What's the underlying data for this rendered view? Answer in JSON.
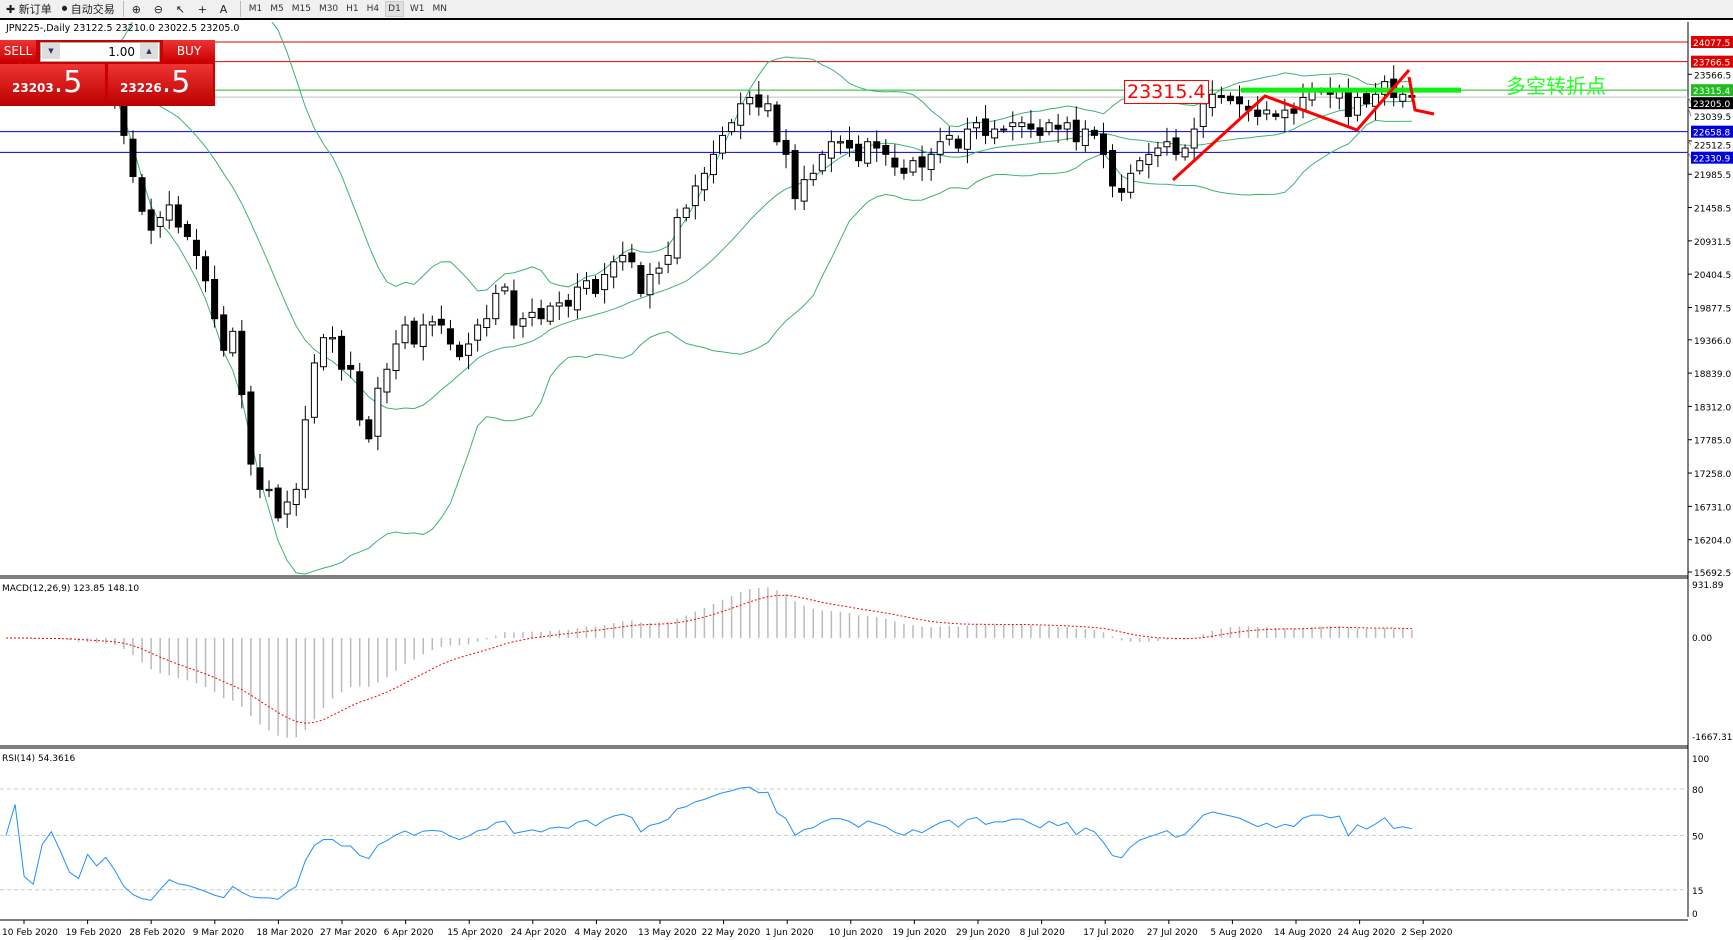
{
  "toolbar": {
    "new_order": "新订单",
    "auto_trading": "自动交易",
    "timeframes": [
      "M1",
      "M5",
      "M15",
      "M30",
      "H1",
      "H4",
      "D1",
      "W1",
      "MN"
    ],
    "active_timeframe": "D1"
  },
  "chart": {
    "header": "JPN225-,Daily  23122.5 23210.0 23022.5 23205.0"
  },
  "trade": {
    "sell_label": "SELL",
    "buy_label": "BUY",
    "lot": "1.00",
    "sell_main": "23203",
    "sell_frac": ".5",
    "buy_main": "23226",
    "buy_frac": ".5"
  },
  "annotations": {
    "price_box": "23315.4",
    "text": "多空转折点"
  },
  "macd": {
    "label": "MACD(12,26,9) 123.85 148.10",
    "axis": [
      "931.89",
      "0.00",
      "-1667.31"
    ]
  },
  "rsi": {
    "label": "RSI(14) 54.3616",
    "axis": [
      "100",
      "80",
      "50",
      "15",
      "0"
    ]
  },
  "colors": {
    "up_candle": "#ffffff",
    "down_candle": "#000000",
    "bands": "#3cb371",
    "resistance": "#e00000",
    "support": "#0000dd",
    "pivot": "#22cc22",
    "arrows": "#ff0000",
    "rsi": "#1e90ff",
    "macd_signal": "#ff0000"
  },
  "chart_data": {
    "type": "candlestick",
    "symbol": "JPN225-",
    "timeframe": "Daily",
    "ylim": [
      15692.5,
      24077.5
    ],
    "price_ticks": [
      "23566.5",
      "23039.5",
      "22512.5",
      "21985.5",
      "21458.5",
      "20931.5",
      "20404.5",
      "19877.5",
      "19366.0",
      "18839.0",
      "18312.0",
      "17785.0",
      "17258.0",
      "16731.0",
      "16204.0",
      "15692.5"
    ],
    "horizontal_lines": [
      {
        "value": "24077.5",
        "color": "#e00000"
      },
      {
        "value": "23766.5",
        "color": "#e00000"
      },
      {
        "value": "23315.4",
        "color": "#22bb22"
      },
      {
        "value": "23205.0",
        "color": "#000000"
      },
      {
        "value": "22658.8",
        "color": "#0000dd"
      },
      {
        "value": "22330.9",
        "color": "#0000dd"
      }
    ],
    "date_labels": [
      "10 Feb 2020",
      "19 Feb 2020",
      "28 Feb 2020",
      "9 Mar 2020",
      "18 Mar 2020",
      "27 Mar 2020",
      "6 Apr 2020",
      "15 Apr 2020",
      "24 Apr 2020",
      "4 May 2020",
      "13 May 2020",
      "22 May 2020",
      "1 Jun 2020",
      "10 Jun 2020",
      "19 Jun 2020",
      "29 Jun 2020",
      "8 Jul 2020",
      "17 Jul 2020",
      "27 Jul 2020",
      "5 Aug 2020",
      "14 Aug 2020",
      "24 Aug 2020",
      "2 Sep 2020"
    ],
    "closes": [
      23800,
      23850,
      23700,
      23650,
      23750,
      23800,
      23700,
      23500,
      23400,
      23550,
      23380,
      23450,
      23200,
      22600,
      21950,
      21400,
      21100,
      21300,
      21500,
      21150,
      21000,
      20700,
      20300,
      19700,
      19200,
      19500,
      18500,
      17400,
      17000,
      17000,
      16550,
      16800,
      17000,
      18100,
      19000,
      19400,
      19400,
      18900,
      18900,
      18100,
      17800,
      18600,
      18900,
      19300,
      19600,
      19300,
      19600,
      19650,
      19600,
      19300,
      19100,
      19300,
      19600,
      19700,
      20100,
      20200,
      19600,
      19700,
      19800,
      19700,
      19900,
      19950,
      19900,
      20200,
      20300,
      20100,
      20400,
      20600,
      20700,
      20600,
      20100,
      20400,
      20500,
      20700,
      21300,
      21450,
      21800,
      22000,
      22300,
      22600,
      22800,
      23100,
      23200,
      23050,
      23100,
      22500,
      22300,
      21600,
      21900,
      22000,
      22300,
      22500,
      22500,
      22400,
      22200,
      22500,
      22400,
      22300,
      22100,
      22000,
      22200,
      22100,
      22300,
      22500,
      22600,
      22400,
      22700,
      22800,
      22600,
      22700,
      22700,
      22800,
      22800,
      22700,
      22600,
      22800,
      22700,
      22800,
      22500,
      22700,
      22600,
      22300,
      21800,
      21700,
      22000,
      22200,
      22300,
      22400,
      22500,
      22300,
      22400,
      22700,
      23100,
      23250,
      23200,
      23150,
      23100,
      23000,
      22900,
      23000,
      22900,
      23000,
      22950,
      23200,
      23300,
      23300,
      23250,
      23300,
      22900,
      23200,
      23100,
      23250,
      23450,
      23200,
      23250,
      23205
    ]
  }
}
